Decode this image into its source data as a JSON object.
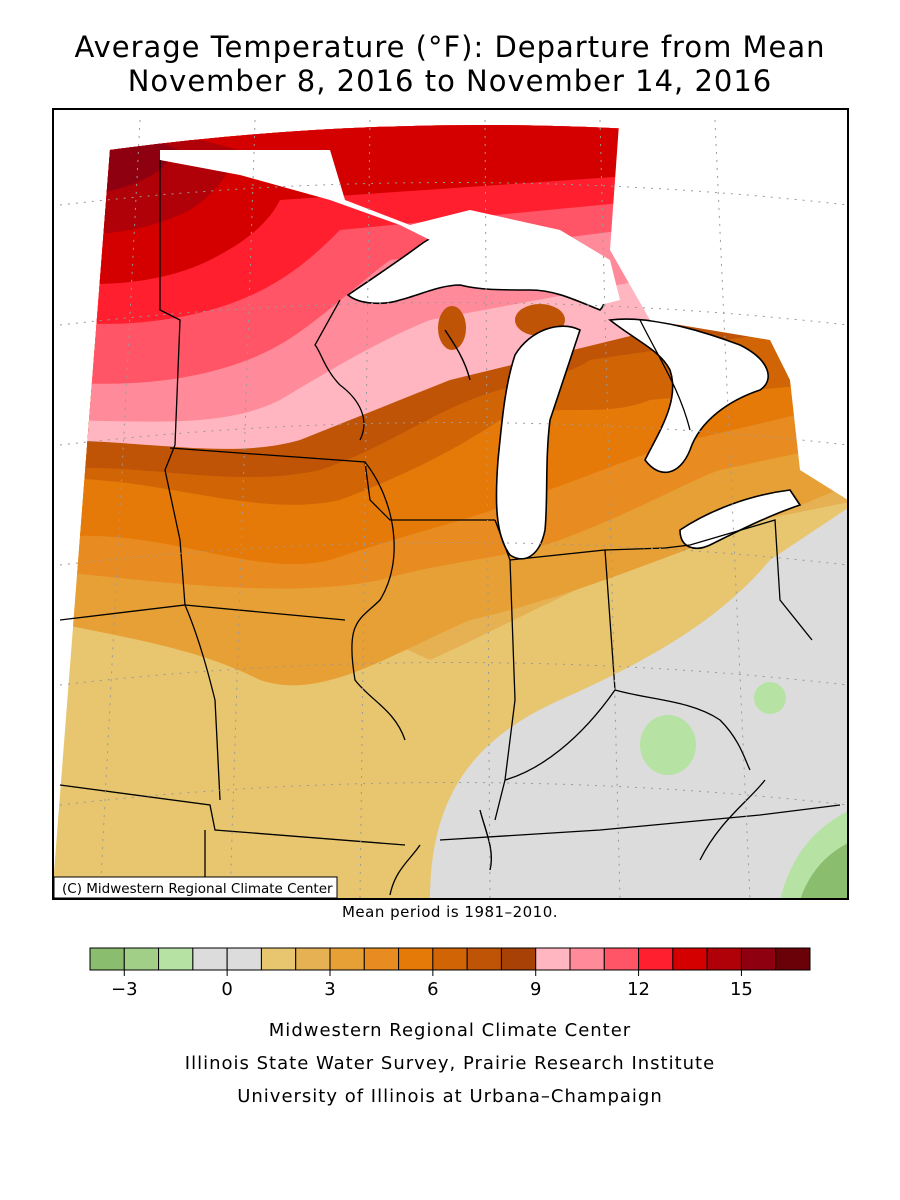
{
  "title": {
    "line1": "Average Temperature (°F): Departure from Mean",
    "line2": "November 8, 2016 to November 14, 2016"
  },
  "copyright": "(C) Midwestern Regional Climate Center",
  "mean_note": "Mean period is 1981–2010.",
  "legend": {
    "colors": [
      "#8bbd6f",
      "#a2cf87",
      "#b6e3a3",
      "#dcdcdc",
      "#dcdcdc",
      "#e8c670",
      "#e6b152",
      "#e7a035",
      "#e88b20",
      "#e67a08",
      "#d16505",
      "#bf5306",
      "#a84106",
      "#ffb6c1",
      "#ff8a99",
      "#ff5566",
      "#ff1f2f",
      "#d40000",
      "#b00008",
      "#8e0010",
      "#6a0008"
    ],
    "tick_labels": [
      "−3",
      "0",
      "3",
      "6",
      "9",
      "12",
      "15"
    ],
    "tick_values": [
      -3,
      0,
      3,
      6,
      9,
      12,
      15
    ],
    "range": [
      -4,
      17
    ]
  },
  "credits": [
    "Midwestern Regional Climate Center",
    "Illinois State Water Survey, Prairie Research Institute",
    "University of Illinois at Urbana–Champaign"
  ]
}
